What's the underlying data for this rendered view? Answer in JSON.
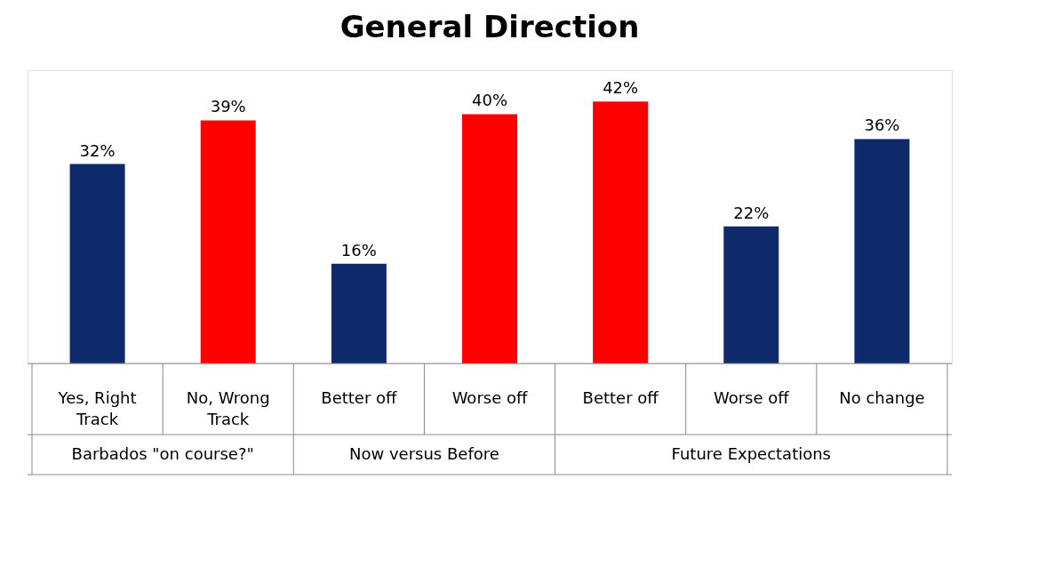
{
  "chart_data": {
    "type": "bar",
    "title": "General Direction",
    "categories": [
      "Yes, Right Track",
      "No, Wrong Track",
      "Better off",
      "Worse off",
      "Better off",
      "Worse off",
      "No change"
    ],
    "values": [
      32,
      39,
      16,
      40,
      42,
      22,
      36
    ],
    "colors": [
      "#0f2a6b",
      "#ff0000",
      "#0f2a6b",
      "#ff0000",
      "#ff0000",
      "#0f2a6b",
      "#0f2a6b"
    ],
    "value_labels": [
      "32%",
      "39%",
      "16%",
      "40%",
      "42%",
      "22%",
      "36%"
    ],
    "annotations": [
      "Barbados \"on course?\"",
      "Now versus Before",
      "Future Expectations"
    ]
  }
}
